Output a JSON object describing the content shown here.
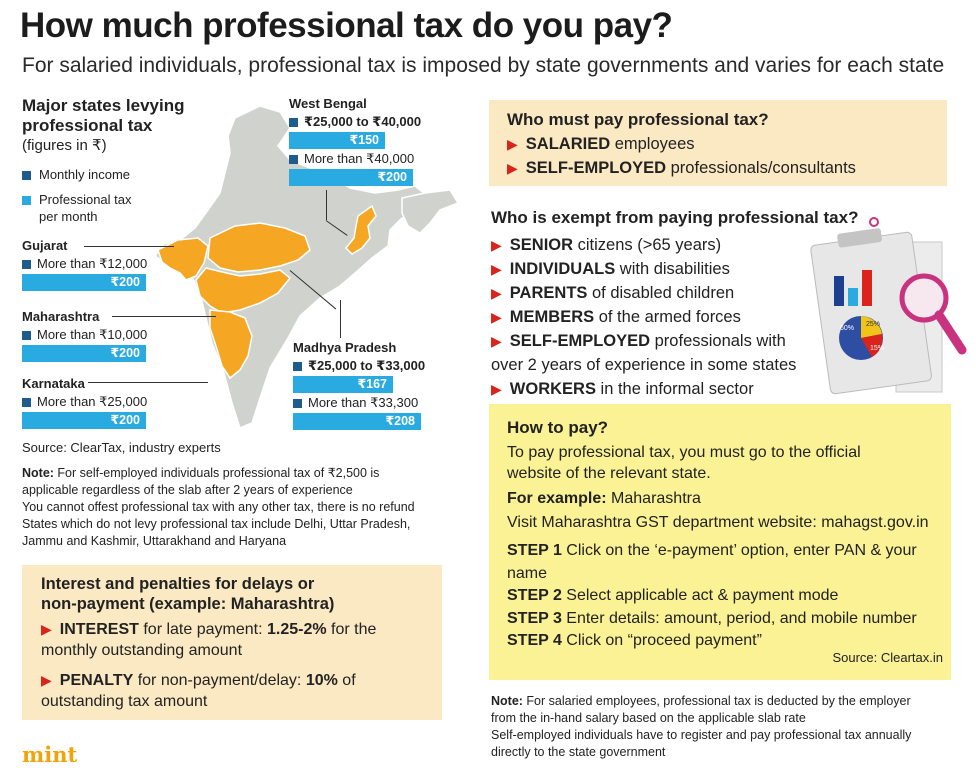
{
  "header": {
    "title": "How much professional tax do you pay?",
    "subtitle": "For salaried individuals, professional tax is imposed by state governments and varies for each state"
  },
  "map_section": {
    "heading_line1": "Major states levying",
    "heading_line2": "professional tax",
    "figures_note": "(figures in ₹)",
    "legend": {
      "monthly_income": "Monthly income",
      "tax_line1": "Professional tax",
      "tax_line2": "per month",
      "monthly_income_color": "#1d5c8d",
      "tax_color": "#29abe2"
    },
    "states": {
      "west_bengal": {
        "name": "West Bengal",
        "slab1": "₹25,000 to ₹40,000",
        "tax1": "₹150",
        "slab2": "More than ₹40,000",
        "tax2": "₹200"
      },
      "gujarat": {
        "name": "Gujarat",
        "slab": "More than ₹12,000",
        "tax": "₹200"
      },
      "maharashtra": {
        "name": "Maharashtra",
        "slab": "More than ₹10,000",
        "tax": "₹200"
      },
      "karnataka": {
        "name": "Karnataka",
        "slab": "More than ₹25,000",
        "tax": "₹200"
      },
      "madhya_pradesh": {
        "name": "Madhya Pradesh",
        "slab1": "₹25,000 to ₹33,000",
        "tax1": "₹167",
        "slab2": "More than ₹33,300",
        "tax2": "₹208"
      }
    },
    "source": "Source: ClearTax, industry experts",
    "note_label": "Note:",
    "note_line1": " For self-employed individuals professional tax of ₹2,500 is",
    "note_line2": "applicable regardless of the slab after 2 years of experience",
    "note_line3": "You cannot offest professional tax with any other tax, there is no refund",
    "note_line4": "States which do not levy professional tax include Delhi, Uttar Pradesh,",
    "note_line5": "Jammu and Kashmir, Uttarakhand and Haryana",
    "map_colors": {
      "highlight": "#f5a623",
      "base": "#cfd2cc"
    }
  },
  "penalties": {
    "heading_line1": "Interest and penalties for delays or",
    "heading_line2": "non-payment (example: Maharashtra)",
    "interest_bold": "INTEREST",
    "interest_text": " for late payment: ",
    "interest_value": "1.25-2%",
    "interest_tail": " for the",
    "interest_line2": "monthly outstanding amount",
    "penalty_bold": "PENALTY",
    "penalty_text": " for non-payment/delay: ",
    "penalty_value": "10%",
    "penalty_tail": " of",
    "penalty_line2": "outstanding tax amount"
  },
  "who_pays": {
    "heading": "Who must pay professional tax?",
    "items": [
      {
        "bold": "SALARIED",
        "rest": " employees"
      },
      {
        "bold": "SELF-EMPLOYED",
        "rest": " professionals/consultants"
      }
    ]
  },
  "exempt": {
    "heading": "Who is exempt from paying professional tax?",
    "items": [
      {
        "bold": "SENIOR",
        "rest": " citizens (>65 years)"
      },
      {
        "bold": "INDIVIDUALS",
        "rest": " with disabilities"
      },
      {
        "bold": "PARENTS",
        "rest": " of disabled children"
      },
      {
        "bold": "MEMBERS",
        "rest": " of the armed forces"
      },
      {
        "bold": "SELF-EMPLOYED",
        "rest": " professionals with"
      },
      {
        "bold": "WORKERS",
        "rest": " in the informal sector"
      }
    ],
    "continuation": "over 2 years of experience in some states"
  },
  "how_to_pay": {
    "heading": "How to pay?",
    "intro_line1": "To pay professional tax, you must go to the official",
    "intro_line2": "website of the relevant state.",
    "example_label": "For example:",
    "example_value": " Maharashtra",
    "visit": "Visit Maharashtra GST department website: mahagst.gov.in",
    "steps": [
      {
        "label": "STEP 1",
        "text": " Click on the ‘e-payment’ option, enter PAN & your"
      },
      {
        "label": "STEP 2",
        "text": " Select applicable act & payment mode"
      },
      {
        "label": "STEP 3",
        "text": " Enter details: amount, period, and mobile number"
      },
      {
        "label": "STEP 4",
        "text": " Click on “proceed payment”"
      }
    ],
    "step1_line2": "name",
    "source": "Source: Cleartax.in"
  },
  "bottom_note": {
    "label": "Note:",
    "line1": " For salaried employees, professional tax is deducted by the employer",
    "line2": "from the in-hand salary based on the applicable slab rate",
    "line3": "Self-employed individuals have to register and pay professional tax annually",
    "line4": "directly to the state government"
  },
  "brand": {
    "logo": "mint",
    "color": "#f0a30a"
  },
  "illustration": {
    "chart_labels": [
      "60%",
      "25%",
      "15%",
      "20%",
      "10%"
    ]
  }
}
